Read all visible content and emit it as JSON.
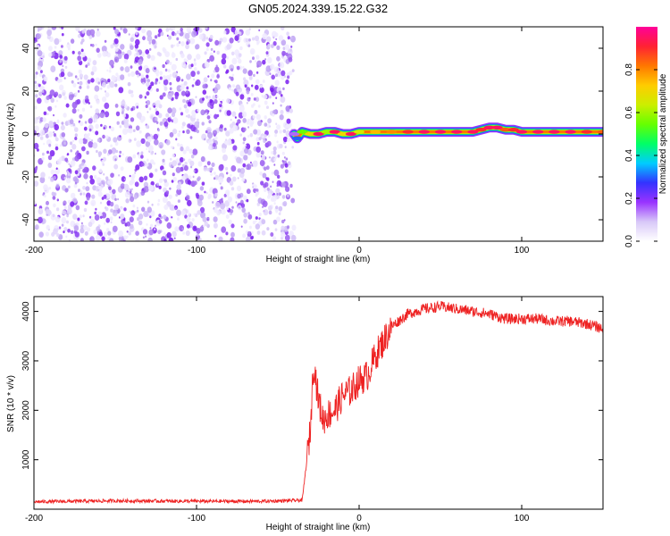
{
  "figure": {
    "title": "GN05.2024.339.15.22.G32"
  },
  "chart_data": [
    {
      "type": "heatmap",
      "title": "GN05.2024.339.15.22.G32",
      "xlabel": "Height of straight line (km)",
      "ylabel": "Frequency (Hz)",
      "xlim": [
        -200,
        150
      ],
      "ylim": [
        -50,
        50
      ],
      "xticks": [
        -200,
        -100,
        0,
        100
      ],
      "yticks": [
        -40,
        -20,
        0,
        20,
        40
      ],
      "noise_region_x": [
        -200,
        -40
      ],
      "signal_region_x": [
        -40,
        150
      ],
      "signal_track": {
        "x": [
          -40,
          -38,
          -35,
          -30,
          -25,
          -20,
          -15,
          -10,
          -5,
          0,
          10,
          20,
          30,
          40,
          50,
          60,
          70,
          75,
          80,
          85,
          90,
          95,
          100,
          110,
          120,
          130,
          140,
          150
        ],
        "frequency": [
          0,
          -2,
          1,
          0,
          0,
          1,
          1,
          0,
          0,
          1,
          1,
          1,
          1,
          1,
          1,
          1,
          1,
          2,
          3,
          3,
          2,
          2,
          1,
          1,
          1,
          1,
          1,
          1
        ],
        "amplitude": [
          0.15,
          0.3,
          0.55,
          0.7,
          0.95,
          0.6,
          0.95,
          0.7,
          0.95,
          0.65,
          0.75,
          0.8,
          0.9,
          0.95,
          0.95,
          0.95,
          0.95,
          0.9,
          0.95,
          0.95,
          0.85,
          0.9,
          0.95,
          0.95,
          0.95,
          0.95,
          0.9,
          0.85
        ]
      },
      "colorbar": {
        "label": "Normalized spectral amplitude",
        "range": [
          0,
          1
        ],
        "ticks": [
          "0.0",
          "0.2",
          "0.4",
          "0.6",
          "0.8"
        ],
        "colors": [
          "#ffffff",
          "#d8c8f8",
          "#9933ff",
          "#3333ff",
          "#00ccff",
          "#00ff66",
          "#66ff00",
          "#ccee00",
          "#ffcc00",
          "#ff7700",
          "#ff2233",
          "#ff0099"
        ]
      }
    },
    {
      "type": "line",
      "xlabel": "Height of straight line (km)",
      "ylabel": "SNR (10 * v/v)",
      "xlim": [
        -200,
        150
      ],
      "ylim": [
        0,
        4300
      ],
      "xticks": [
        -200,
        -100,
        0,
        100
      ],
      "yticks": [
        1000,
        2000,
        3000,
        4000
      ],
      "line_color": "#ee2222",
      "series": [
        {
          "x": [
            -200,
            -150,
            -100,
            -60,
            -35,
            -30,
            -28,
            -25,
            -22,
            -20,
            -15,
            -10,
            -5,
            0,
            5,
            10,
            15,
            20,
            30,
            40,
            50,
            60,
            70,
            80,
            90,
            100,
            110,
            120,
            130,
            140,
            150
          ],
          "y": [
            150,
            170,
            160,
            160,
            180,
            1600,
            3000,
            2200,
            1800,
            1900,
            2000,
            2300,
            2400,
            2600,
            2700,
            3100,
            3400,
            3700,
            3950,
            4050,
            4100,
            4050,
            4000,
            3950,
            3850,
            3850,
            3850,
            3800,
            3800,
            3750,
            3650
          ]
        }
      ]
    }
  ]
}
